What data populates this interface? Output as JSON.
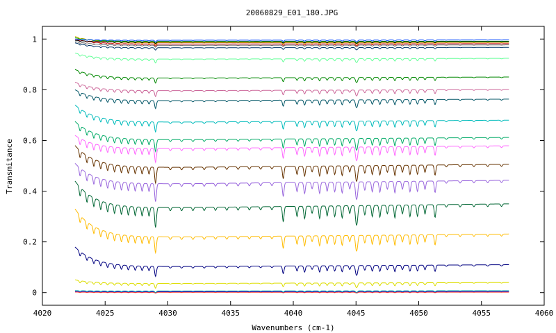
{
  "chart_data": {
    "type": "line",
    "title": "20060829_E01_180.JPG",
    "xlabel": "Wavenumbers (cm-1)",
    "ylabel": "Transmitance",
    "xlim": [
      4020,
      4060
    ],
    "ylim": [
      -0.05,
      1.05
    ],
    "xticks": [
      "4020",
      "4025",
      "4030",
      "4035",
      "4040",
      "4045",
      "4050",
      "4055",
      "4060"
    ],
    "yticks": [
      "0",
      "0.2",
      "0.4",
      "0.6",
      "0.8",
      "1"
    ],
    "x_range": [
      4022.6,
      4057.2
    ],
    "grid": false,
    "legend": "none",
    "series": [
      {
        "color": "#0000cc",
        "baseline": 0.003,
        "start": 0.004,
        "depth": 0.003
      },
      {
        "color": "#00aaaa",
        "baseline": 0.006,
        "start": 0.008,
        "depth": 0.004
      },
      {
        "color": "#ff3333",
        "baseline": 0.001,
        "start": 0.002,
        "depth": 0.002
      },
      {
        "color": "#dddd00",
        "baseline": 0.035,
        "start": 0.05,
        "depth": 0.012
      },
      {
        "color": "#000080",
        "baseline": 0.1,
        "start": 0.18,
        "depth": 0.025
      },
      {
        "color": "#ffbb00",
        "baseline": 0.215,
        "start": 0.33,
        "depth": 0.04
      },
      {
        "color": "#006633",
        "baseline": 0.33,
        "start": 0.44,
        "depth": 0.05
      },
      {
        "color": "#9966dd",
        "baseline": 0.425,
        "start": 0.51,
        "depth": 0.045
      },
      {
        "color": "#663300",
        "baseline": 0.49,
        "start": 0.58,
        "depth": 0.04
      },
      {
        "color": "#ff66ff",
        "baseline": 0.565,
        "start": 0.62,
        "depth": 0.035
      },
      {
        "color": "#00aa66",
        "baseline": 0.6,
        "start": 0.675,
        "depth": 0.03
      },
      {
        "color": "#00bbbb",
        "baseline": 0.67,
        "start": 0.74,
        "depth": 0.025
      },
      {
        "color": "#005566",
        "baseline": 0.755,
        "start": 0.8,
        "depth": 0.02
      },
      {
        "color": "#cc6699",
        "baseline": 0.795,
        "start": 0.83,
        "depth": 0.015
      },
      {
        "color": "#008800",
        "baseline": 0.845,
        "start": 0.88,
        "depth": 0.013
      },
      {
        "color": "#66ff99",
        "baseline": 0.92,
        "start": 0.945,
        "depth": 0.01
      },
      {
        "color": "#003366",
        "baseline": 0.965,
        "start": 0.985,
        "depth": 0.006
      },
      {
        "color": "#cc0000",
        "baseline": 0.98,
        "start": 1.0,
        "depth": 0.005
      },
      {
        "color": "#ddaa00",
        "baseline": 0.985,
        "start": 1.01,
        "depth": 0.005
      },
      {
        "color": "#00aa00",
        "baseline": 0.99,
        "start": 1.005,
        "depth": 0.004
      },
      {
        "color": "#0044ff",
        "baseline": 0.995,
        "start": 1.0,
        "depth": 0.004
      },
      {
        "color": "#000000",
        "baseline": 0.988,
        "start": 0.995,
        "depth": 0.004
      },
      {
        "color": "#666666",
        "baseline": 0.975,
        "start": 0.99,
        "depth": 0.005
      }
    ]
  }
}
